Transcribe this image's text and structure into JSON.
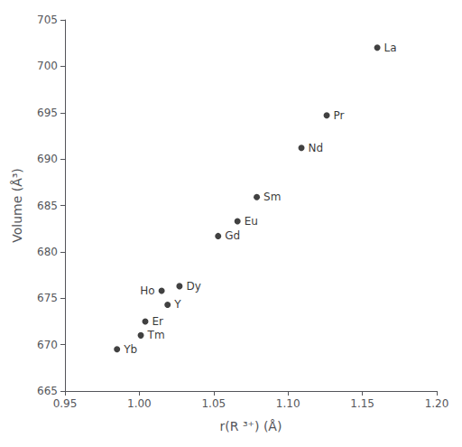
{
  "chart_data": {
    "type": "scatter",
    "x": [
      1.16,
      1.126,
      1.109,
      1.079,
      1.066,
      1.053,
      1.027,
      1.015,
      1.019,
      1.004,
      1.001,
      0.985
    ],
    "values": [
      702.0,
      694.7,
      691.2,
      685.9,
      683.3,
      681.7,
      676.3,
      675.8,
      674.3,
      672.5,
      671.0,
      669.5
    ],
    "point_labels": [
      "La",
      "Pr",
      "Nd",
      "Sm",
      "Eu",
      "Gd",
      "Dy",
      "Ho",
      "Y",
      "Er",
      "Tm",
      "Yb"
    ],
    "color": "#111111",
    "marker": "circle",
    "xlabel": "r(R ³⁺) (Å)",
    "ylabel": "Volume (Å³)",
    "xlim": [
      0.95,
      1.2
    ],
    "ylim": [
      665,
      705
    ],
    "xticks": [
      0.95,
      {
        "value": 1.0,
        "label": "1.00"
      },
      1.05,
      {
        "value": 1.1,
        "label": "1.10"
      },
      1.15,
      {
        "value": 1.2,
        "label": "1.20"
      }
    ],
    "yticks": [
      665,
      670,
      675,
      680,
      685,
      690,
      695,
      700,
      705
    ],
    "grid": false
  }
}
